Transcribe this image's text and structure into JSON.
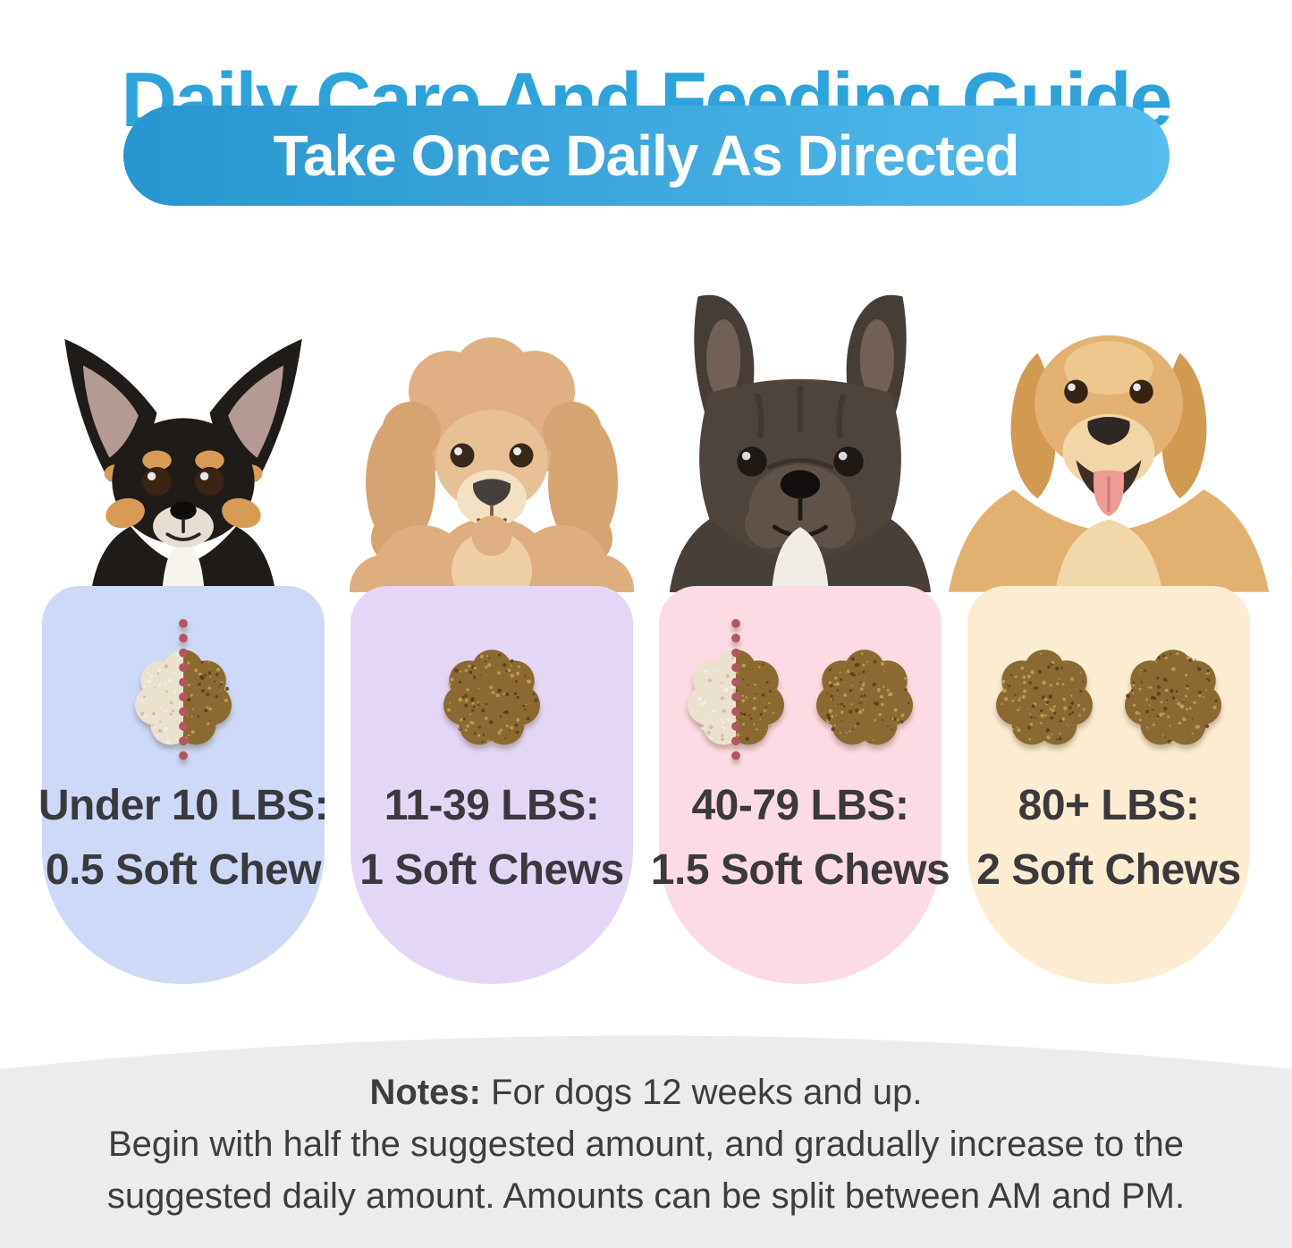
{
  "title": "Daily Care And Feeding Guide",
  "subtitle": "Take Once Daily As Directed",
  "colors": {
    "title_blue": "#2da3dc",
    "pill_gradient_start": "#2795cf",
    "pill_gradient_end": "#55bcee",
    "label_text": "#3a393d",
    "notes_text": "#3d3c3f",
    "footer_bg": "#ececec",
    "chew_brown": "#8a6a30",
    "chew_cream": "#ebe1cf",
    "split_dot_red": "#b4565f"
  },
  "cards": [
    {
      "dog": "chihuahua",
      "bg": "#cdd9f7",
      "weight": "Under 10 LBS:",
      "dose": "0.5 Soft Chew",
      "chews": 0.5,
      "icons": [
        "half-chew-icon"
      ]
    },
    {
      "dog": "poodle",
      "bg": "#e4d7f6",
      "weight": "11-39 LBS:",
      "dose": "1 Soft Chews",
      "chews": 1,
      "icons": [
        "soft-chew-icon"
      ]
    },
    {
      "dog": "french-bulldog",
      "bg": "#fcdbe4",
      "weight": "40-79 LBS:",
      "dose": "1.5 Soft Chews",
      "chews": 1.5,
      "icons": [
        "half-chew-icon",
        "soft-chew-icon"
      ]
    },
    {
      "dog": "golden-retriever",
      "bg": "#fcedd2",
      "weight": "80+ LBS:",
      "dose": "2 Soft Chews",
      "chews": 2,
      "icons": [
        "soft-chew-icon",
        "soft-chew-icon"
      ]
    }
  ],
  "notes": {
    "label": "Notes:",
    "line1": " For dogs 12 weeks and up.",
    "line2": "Begin with half the suggested amount, and gradually increase to the",
    "line3": "suggested daily amount. Amounts can be split between AM and PM."
  }
}
